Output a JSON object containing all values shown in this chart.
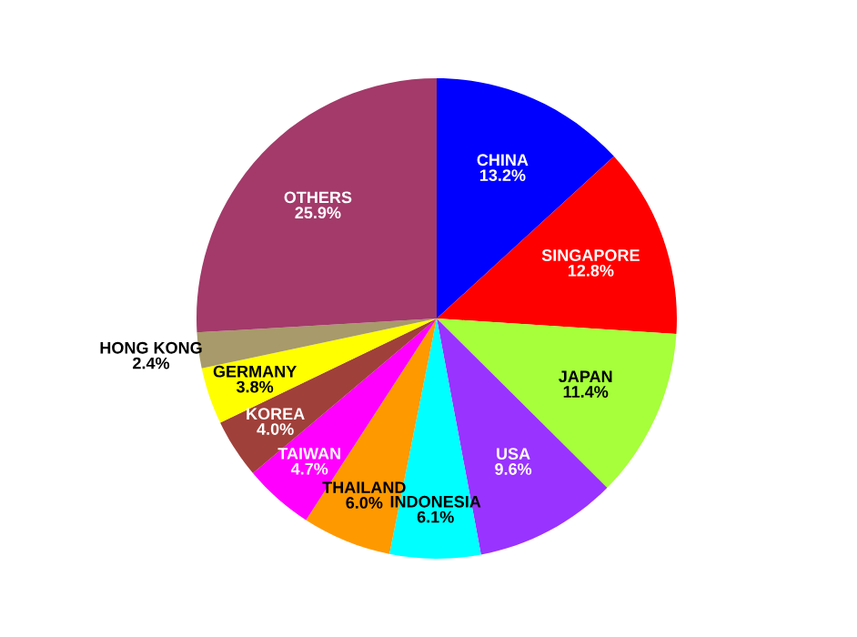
{
  "chart_data": {
    "type": "pie",
    "categories": [
      "CHINA",
      "SINGAPORE",
      "JAPAN",
      "USA",
      "INDONESIA",
      "THAILAND",
      "TAIWAN",
      "KOREA",
      "GERMANY",
      "HONG KONG",
      "OTHERS"
    ],
    "values": [
      13.2,
      12.8,
      11.4,
      9.6,
      6.1,
      6.0,
      4.7,
      4.0,
      3.8,
      2.4,
      25.9
    ],
    "value_labels": [
      "13.2%",
      "12.8%",
      "11.4%",
      "9.6%",
      "6.1%",
      "6.0%",
      "4.7%",
      "4.0%",
      "3.8%",
      "2.4%",
      "25.9%"
    ],
    "colors": [
      "#0000ff",
      "#ff0000",
      "#a6ff3a",
      "#9933ff",
      "#00ffff",
      "#ff9900",
      "#ff00ff",
      "#a0403a",
      "#ffff00",
      "#a89a6a",
      "#a33a6a"
    ]
  }
}
